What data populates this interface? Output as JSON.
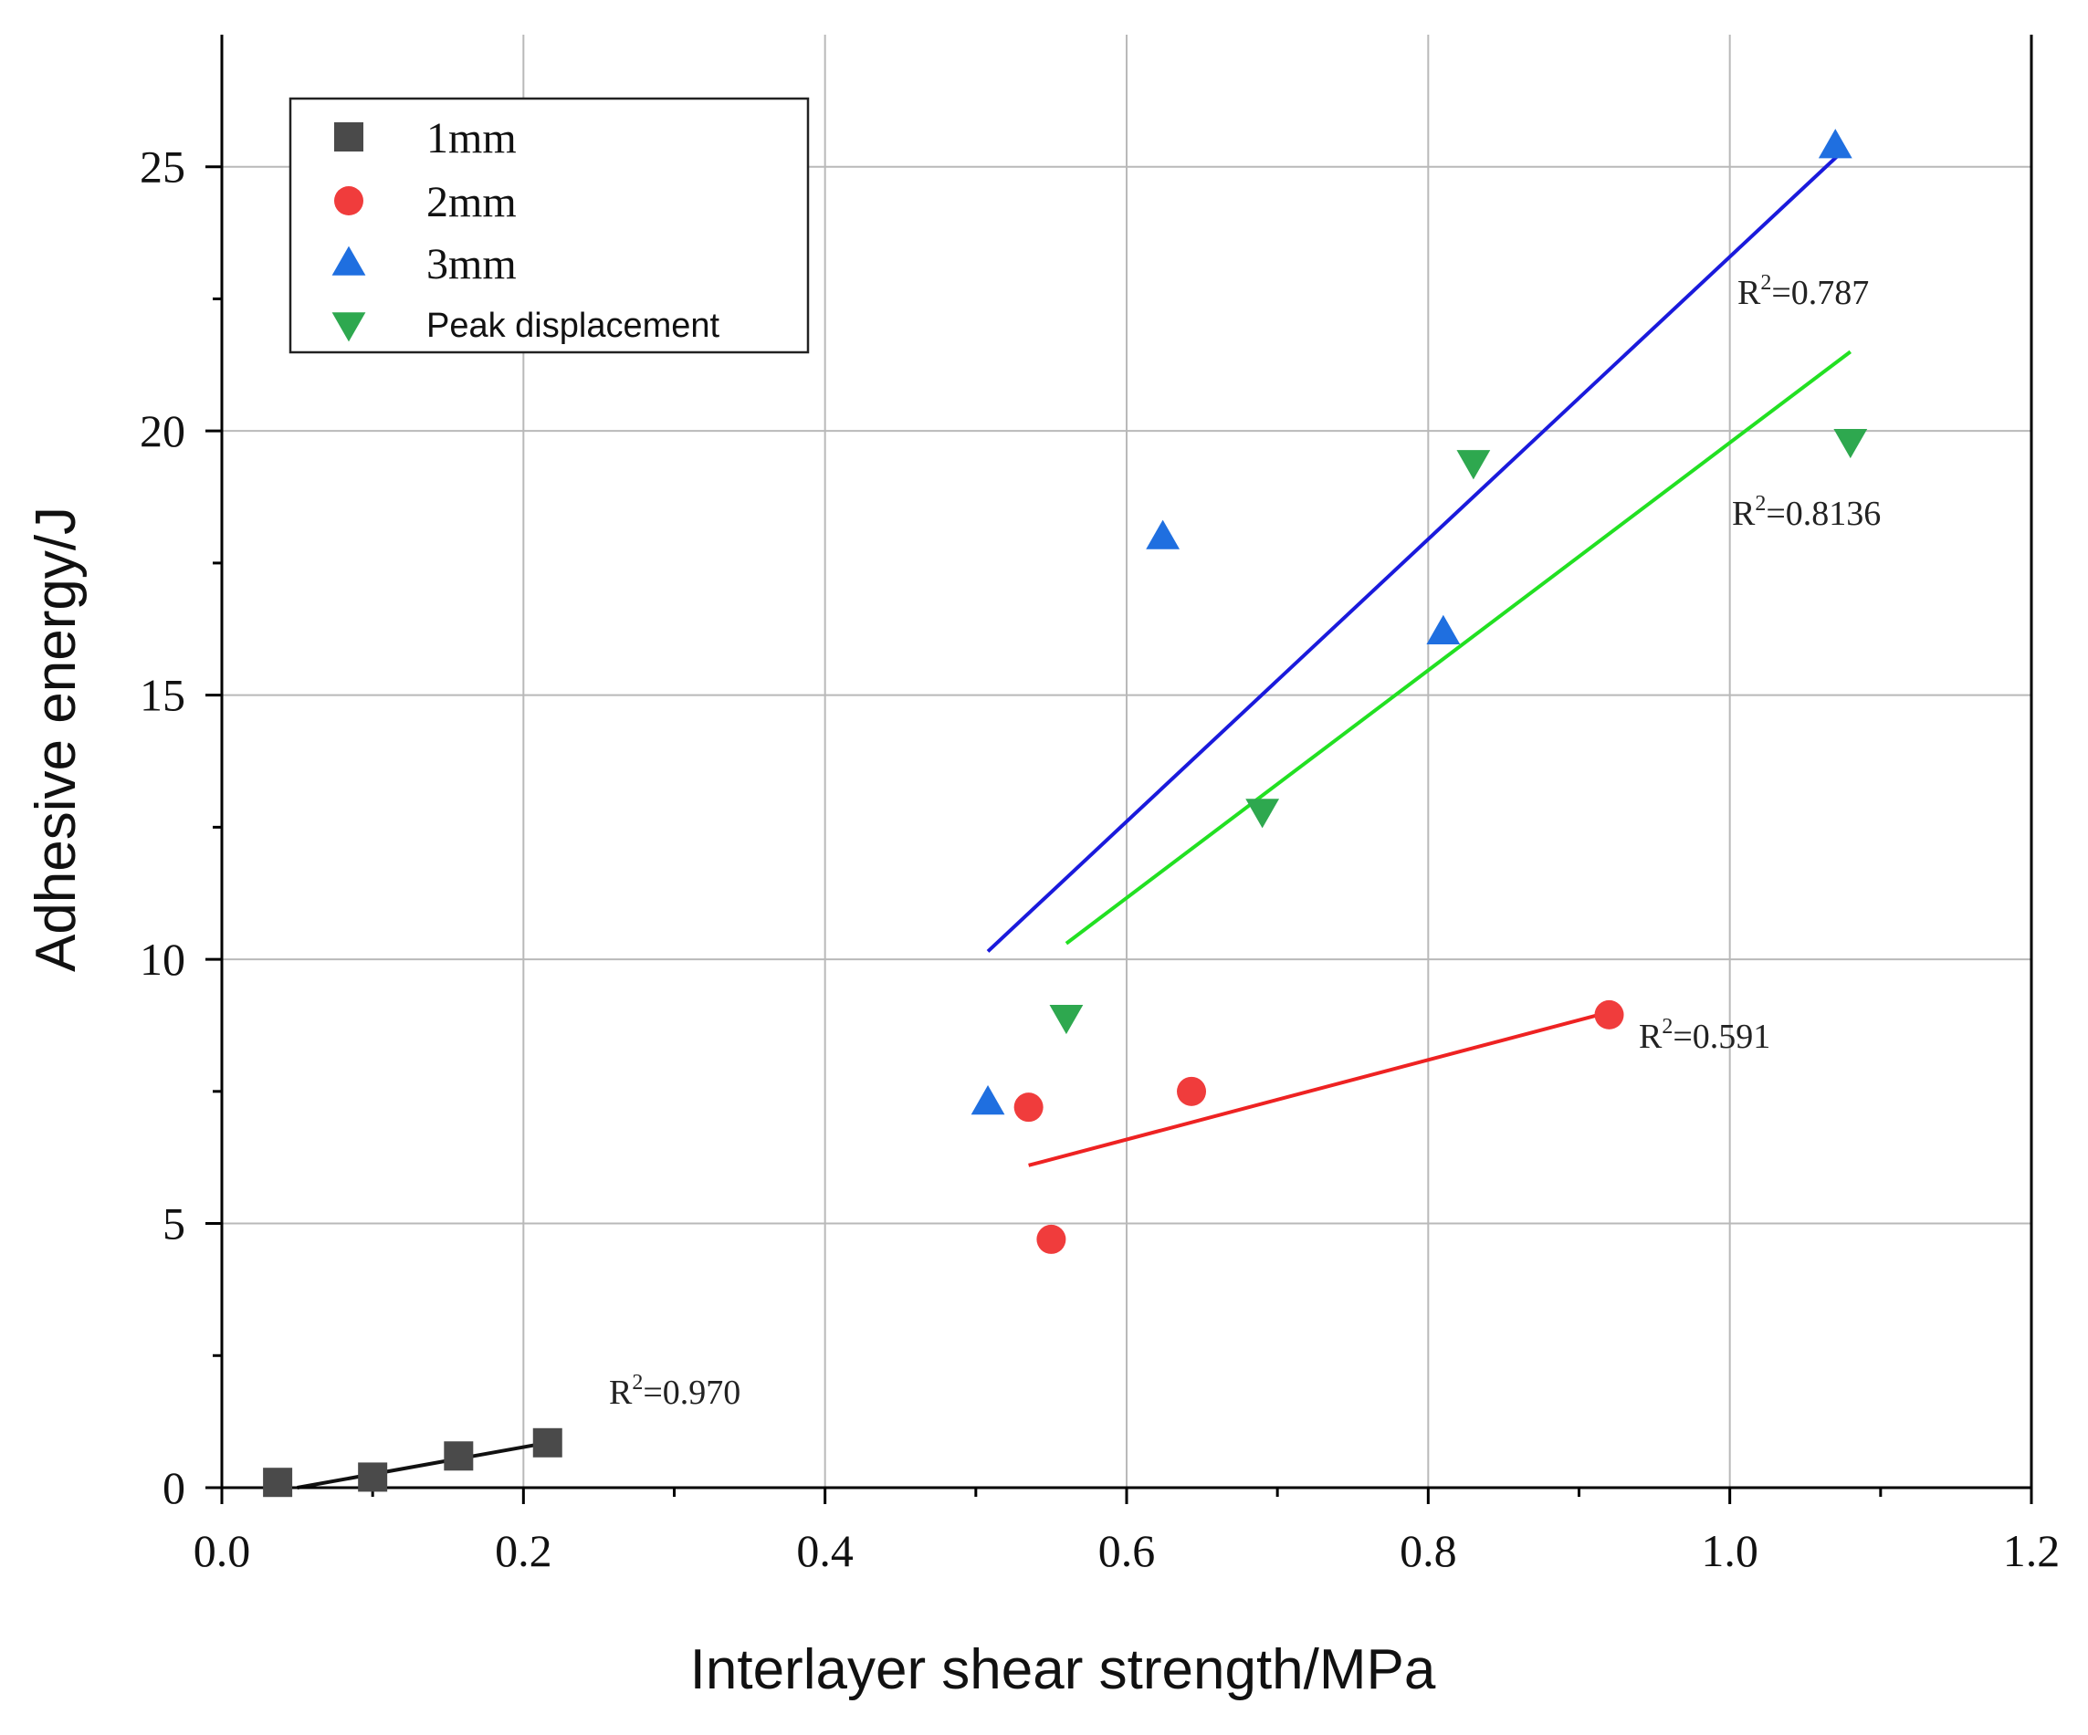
{
  "chart_data": {
    "type": "scatter",
    "title": "",
    "xlabel": "Interlayer shear strength/MPa",
    "ylabel": "Adhesive energy/J",
    "xlim": [
      0.0,
      1.2
    ],
    "ylim": [
      0,
      27.5
    ],
    "xticks": [
      0.0,
      0.2,
      0.4,
      0.6,
      0.8,
      1.0,
      1.2
    ],
    "xtick_labels": [
      "0.0",
      "0.2",
      "0.4",
      "0.6",
      "0.8",
      "1.0",
      "1.2"
    ],
    "yticks": [
      0,
      5,
      10,
      15,
      20,
      25
    ],
    "ytick_labels": [
      "0",
      "5",
      "10",
      "15",
      "20",
      "25"
    ],
    "grid": true,
    "legend_position": "top-left",
    "series": [
      {
        "name": "1mm",
        "marker": "square",
        "color": "#4a4a4a",
        "points": [
          [
            0.037,
            0.1
          ],
          [
            0.1,
            0.2
          ],
          [
            0.157,
            0.6
          ],
          [
            0.216,
            0.85
          ]
        ],
        "fit": {
          "x": [
            0.05,
            0.216
          ],
          "y": [
            0.0,
            0.85
          ],
          "color": "#111111",
          "label": "R",
          "sup": "2",
          "value": "=0.970"
        }
      },
      {
        "name": "2mm",
        "marker": "circle",
        "color": "#f03c3c",
        "points": [
          [
            0.535,
            7.2
          ],
          [
            0.55,
            4.7
          ],
          [
            0.643,
            7.5
          ],
          [
            0.92,
            8.95
          ]
        ],
        "fit": {
          "x": [
            0.535,
            0.92
          ],
          "y": [
            6.1,
            9.0
          ],
          "color": "#ee2222",
          "label": "R",
          "sup": "2",
          "value": "=0.591"
        }
      },
      {
        "name": "3mm",
        "marker": "triangle-up",
        "color": "#1f6fe0",
        "points": [
          [
            0.508,
            7.3
          ],
          [
            0.624,
            18.0
          ],
          [
            0.81,
            16.2
          ],
          [
            1.07,
            25.4
          ]
        ],
        "fit": {
          "x": [
            0.508,
            1.075
          ],
          "y": [
            10.15,
            25.3
          ],
          "color": "#1a1adc",
          "label": "R",
          "sup": "2",
          "value": "=0.787"
        }
      },
      {
        "name": "Peak displacement",
        "marker": "triangle-down",
        "color": "#2ea84f",
        "points": [
          [
            0.56,
            8.9
          ],
          [
            0.69,
            12.8
          ],
          [
            0.83,
            19.4
          ],
          [
            1.08,
            19.8
          ]
        ],
        "fit": {
          "x": [
            0.56,
            1.08
          ],
          "y": [
            10.3,
            21.5
          ],
          "color": "#22e022",
          "label": "R",
          "sup": "2",
          "value": "=0.8136"
        }
      }
    ]
  }
}
